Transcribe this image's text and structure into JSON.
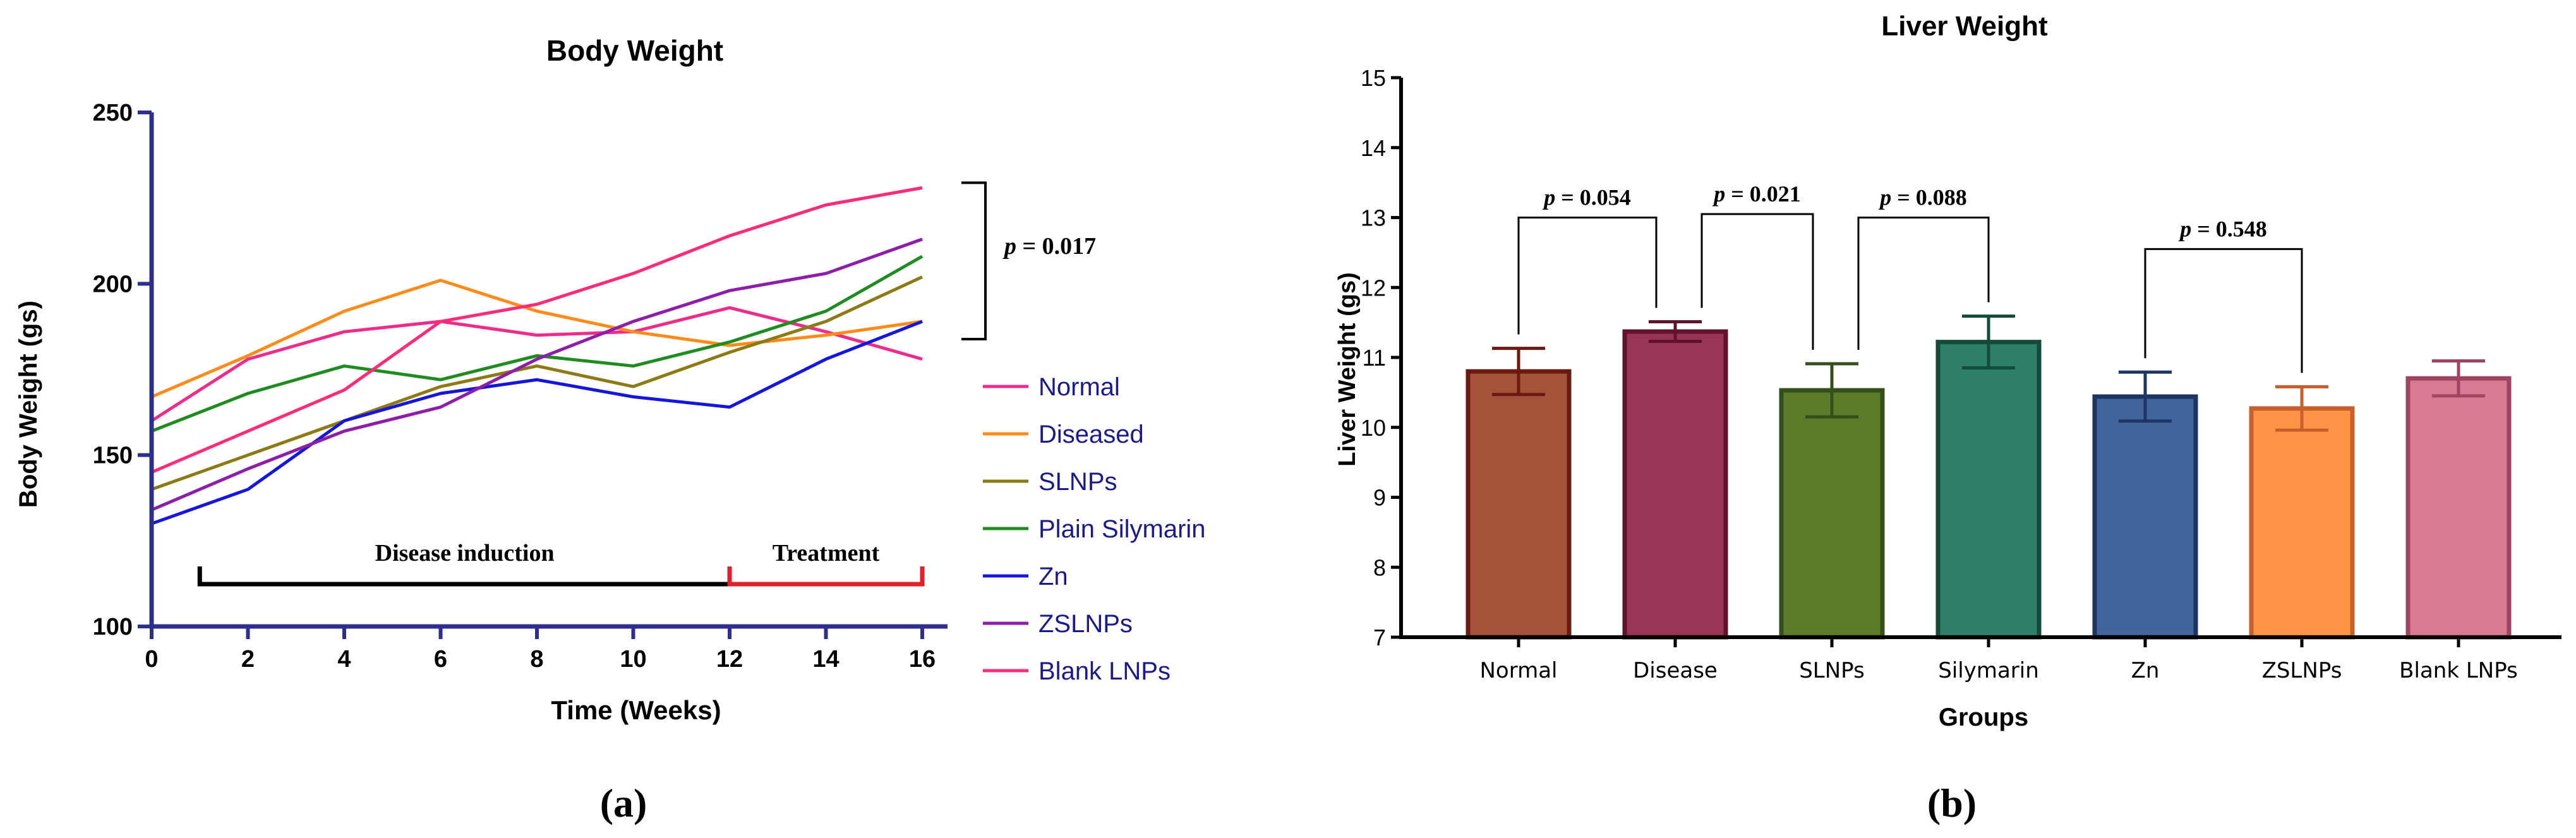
{
  "colors": {
    "axis_a": "#2E2E8C",
    "axis_b": "#000000",
    "bracket_disease": "#000000",
    "bracket_treatment": "#E0202A",
    "sig_bracket": "#000000"
  },
  "panel_labels": {
    "a": "(a)",
    "b": "(b)"
  },
  "chart_data": [
    {
      "type": "line",
      "title": "Body Weight",
      "xlabel": "Time (Weeks)",
      "ylabel": "Body Weight (gs)",
      "xlim": [
        0,
        16
      ],
      "ylim": [
        100,
        250
      ],
      "xticks": [
        0,
        2,
        4,
        6,
        8,
        10,
        12,
        14,
        16
      ],
      "yticks": [
        100,
        150,
        200,
        250
      ],
      "x": [
        0,
        2,
        4,
        6,
        8,
        10,
        12,
        14,
        16
      ],
      "legend_position": "right",
      "series": [
        {
          "name": "Normal",
          "color": "#F02C8A",
          "values": [
            160,
            178,
            186,
            189,
            185,
            186,
            193,
            186,
            178
          ]
        },
        {
          "name": "Diseased",
          "color": "#FF8C1A",
          "values": [
            167,
            179,
            192,
            201,
            192,
            186,
            182,
            185,
            189
          ]
        },
        {
          "name": "SLNPs",
          "color": "#8C7A14",
          "values": [
            140,
            150,
            160,
            170,
            176,
            170,
            180,
            189,
            202
          ]
        },
        {
          "name": "Plain Silymarin",
          "color": "#1E8C1E",
          "values": [
            157,
            168,
            176,
            172,
            179,
            176,
            183,
            192,
            208
          ]
        },
        {
          "name": "Zn",
          "color": "#1515E0",
          "values": [
            130,
            140,
            160,
            168,
            172,
            167,
            164,
            178,
            189
          ]
        },
        {
          "name": "ZSLNPs",
          "color": "#8E1EAA",
          "values": [
            134,
            146,
            157,
            164,
            178,
            189,
            198,
            203,
            213
          ]
        },
        {
          "name": "Blank LNPs",
          "color": "#FF2C7A",
          "values": [
            145,
            157,
            169,
            189,
            194,
            203,
            214,
            223,
            228
          ]
        }
      ],
      "annotations": {
        "p_prefix": "p",
        "p_value": " = 0.017",
        "disease_label": "Disease induction",
        "disease_range": [
          1,
          12
        ],
        "treatment_label": "Treatment",
        "treatment_range": [
          12,
          16
        ],
        "bracket_y_range": [
          189,
          228
        ]
      }
    },
    {
      "type": "bar",
      "title": "Liver Weight",
      "xlabel": "Groups",
      "ylabel": "Liver Weight (gs)",
      "ylim": [
        7,
        15
      ],
      "yticks": [
        7,
        8,
        9,
        10,
        11,
        12,
        13,
        14,
        15
      ],
      "categories": [
        "Normal",
        "Disease",
        "SLNPs",
        "Silymarin",
        "Zn",
        "ZSLNPs",
        "Blank LNPs"
      ],
      "values": [
        10.8,
        11.37,
        10.53,
        11.22,
        10.44,
        10.27,
        10.7
      ],
      "errors": [
        0.33,
        0.14,
        0.38,
        0.37,
        0.35,
        0.31,
        0.25
      ],
      "colors": [
        "#A4523A",
        "#9B3558",
        "#5E7B2A",
        "#2E7F6A",
        "#41659C",
        "#FF9447",
        "#D97992"
      ],
      "edge_colors": [
        "#6B1A10",
        "#60122E",
        "#34501A",
        "#144A3A",
        "#1E3560",
        "#C8602E",
        "#9E4460"
      ],
      "comparisons": [
        {
          "from": 0,
          "to": 1,
          "p_prefix": "p",
          "p_value": " = 0.054",
          "top": 13.0
        },
        {
          "from": 1,
          "to": 2,
          "p_prefix": "p",
          "p_value": " = 0.021",
          "top": 13.05
        },
        {
          "from": 2,
          "to": 3,
          "p_prefix": "p",
          "p_value": " = 0.088",
          "top": 13.0
        },
        {
          "from": 4,
          "to": 5,
          "p_prefix": "p",
          "p_value": " = 0.548",
          "top": 12.55
        }
      ]
    }
  ]
}
